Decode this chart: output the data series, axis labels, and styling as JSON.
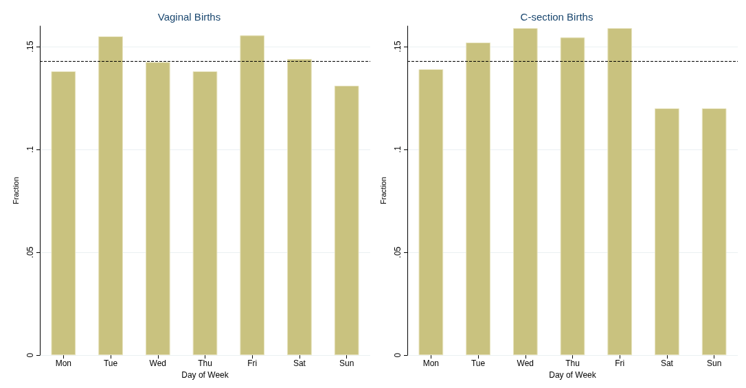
{
  "chart_data": [
    {
      "type": "bar",
      "title": "Vaginal Births",
      "xlabel": "Day of Week",
      "ylabel": "Fraction",
      "categories": [
        "Mon",
        "Tue",
        "Wed",
        "Thu",
        "Fri",
        "Sat",
        "Sun"
      ],
      "values": [
        0.138,
        0.155,
        0.1425,
        0.138,
        0.1555,
        0.144,
        0.131
      ],
      "color": "#c9c27f",
      "ylim": [
        0,
        0.16
      ],
      "yticks": [
        0,
        {
          "value": 0.05,
          "label": ".05"
        },
        {
          "value": 0.1,
          "label": ".1"
        },
        {
          "value": 0.15,
          "label": ".15"
        }
      ],
      "grid": "y",
      "ref_lines": [
        {
          "axis": "y",
          "value": 0.143,
          "color": "#000000",
          "line_style": "dashed"
        }
      ]
    },
    {
      "type": "bar",
      "title": "C-section Births",
      "xlabel": "Day of Week",
      "ylabel": "Fraction",
      "categories": [
        "Mon",
        "Tue",
        "Wed",
        "Thu",
        "Fri",
        "Sat",
        "Sun"
      ],
      "values": [
        0.139,
        0.152,
        0.159,
        0.1545,
        0.159,
        0.12,
        0.12
      ],
      "color": "#c9c27f",
      "ylim": [
        0,
        0.16
      ],
      "yticks": [
        0,
        {
          "value": 0.05,
          "label": ".05"
        },
        {
          "value": 0.1,
          "label": ".1"
        },
        {
          "value": 0.15,
          "label": ".15"
        }
      ],
      "grid": "y",
      "ref_lines": [
        {
          "axis": "y",
          "value": 0.143,
          "color": "#000000",
          "line_style": "dashed"
        }
      ]
    }
  ]
}
